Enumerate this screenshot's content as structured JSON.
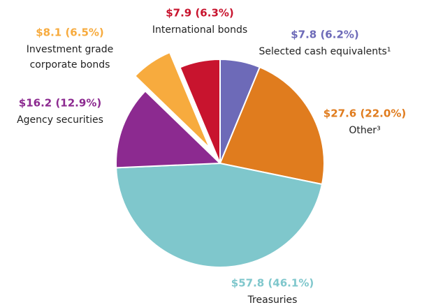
{
  "chart_data": {
    "type": "pie",
    "categories": [
      "Selected cash equivalents¹",
      "Other³",
      "Treasuries",
      "Agency securities",
      "Investment grade\ncorporate bonds",
      "International bonds"
    ],
    "values": [
      7.8,
      27.6,
      57.8,
      16.2,
      8.1,
      7.9
    ],
    "value_labels": [
      "$7.8 (6.2%)",
      "$27.6 (22.0%)",
      "$57.8 (46.1%)",
      "$16.2 (12.9%)",
      "$8.1 (6.5%)",
      "$7.9 (6.3%)"
    ],
    "colors": [
      "#6d6ab8",
      "#e07c1e",
      "#7fc7cc",
      "#8c2a90",
      "#f7ab3e",
      "#c8142e"
    ],
    "exploded": [
      false,
      false,
      false,
      false,
      true,
      false
    ]
  }
}
